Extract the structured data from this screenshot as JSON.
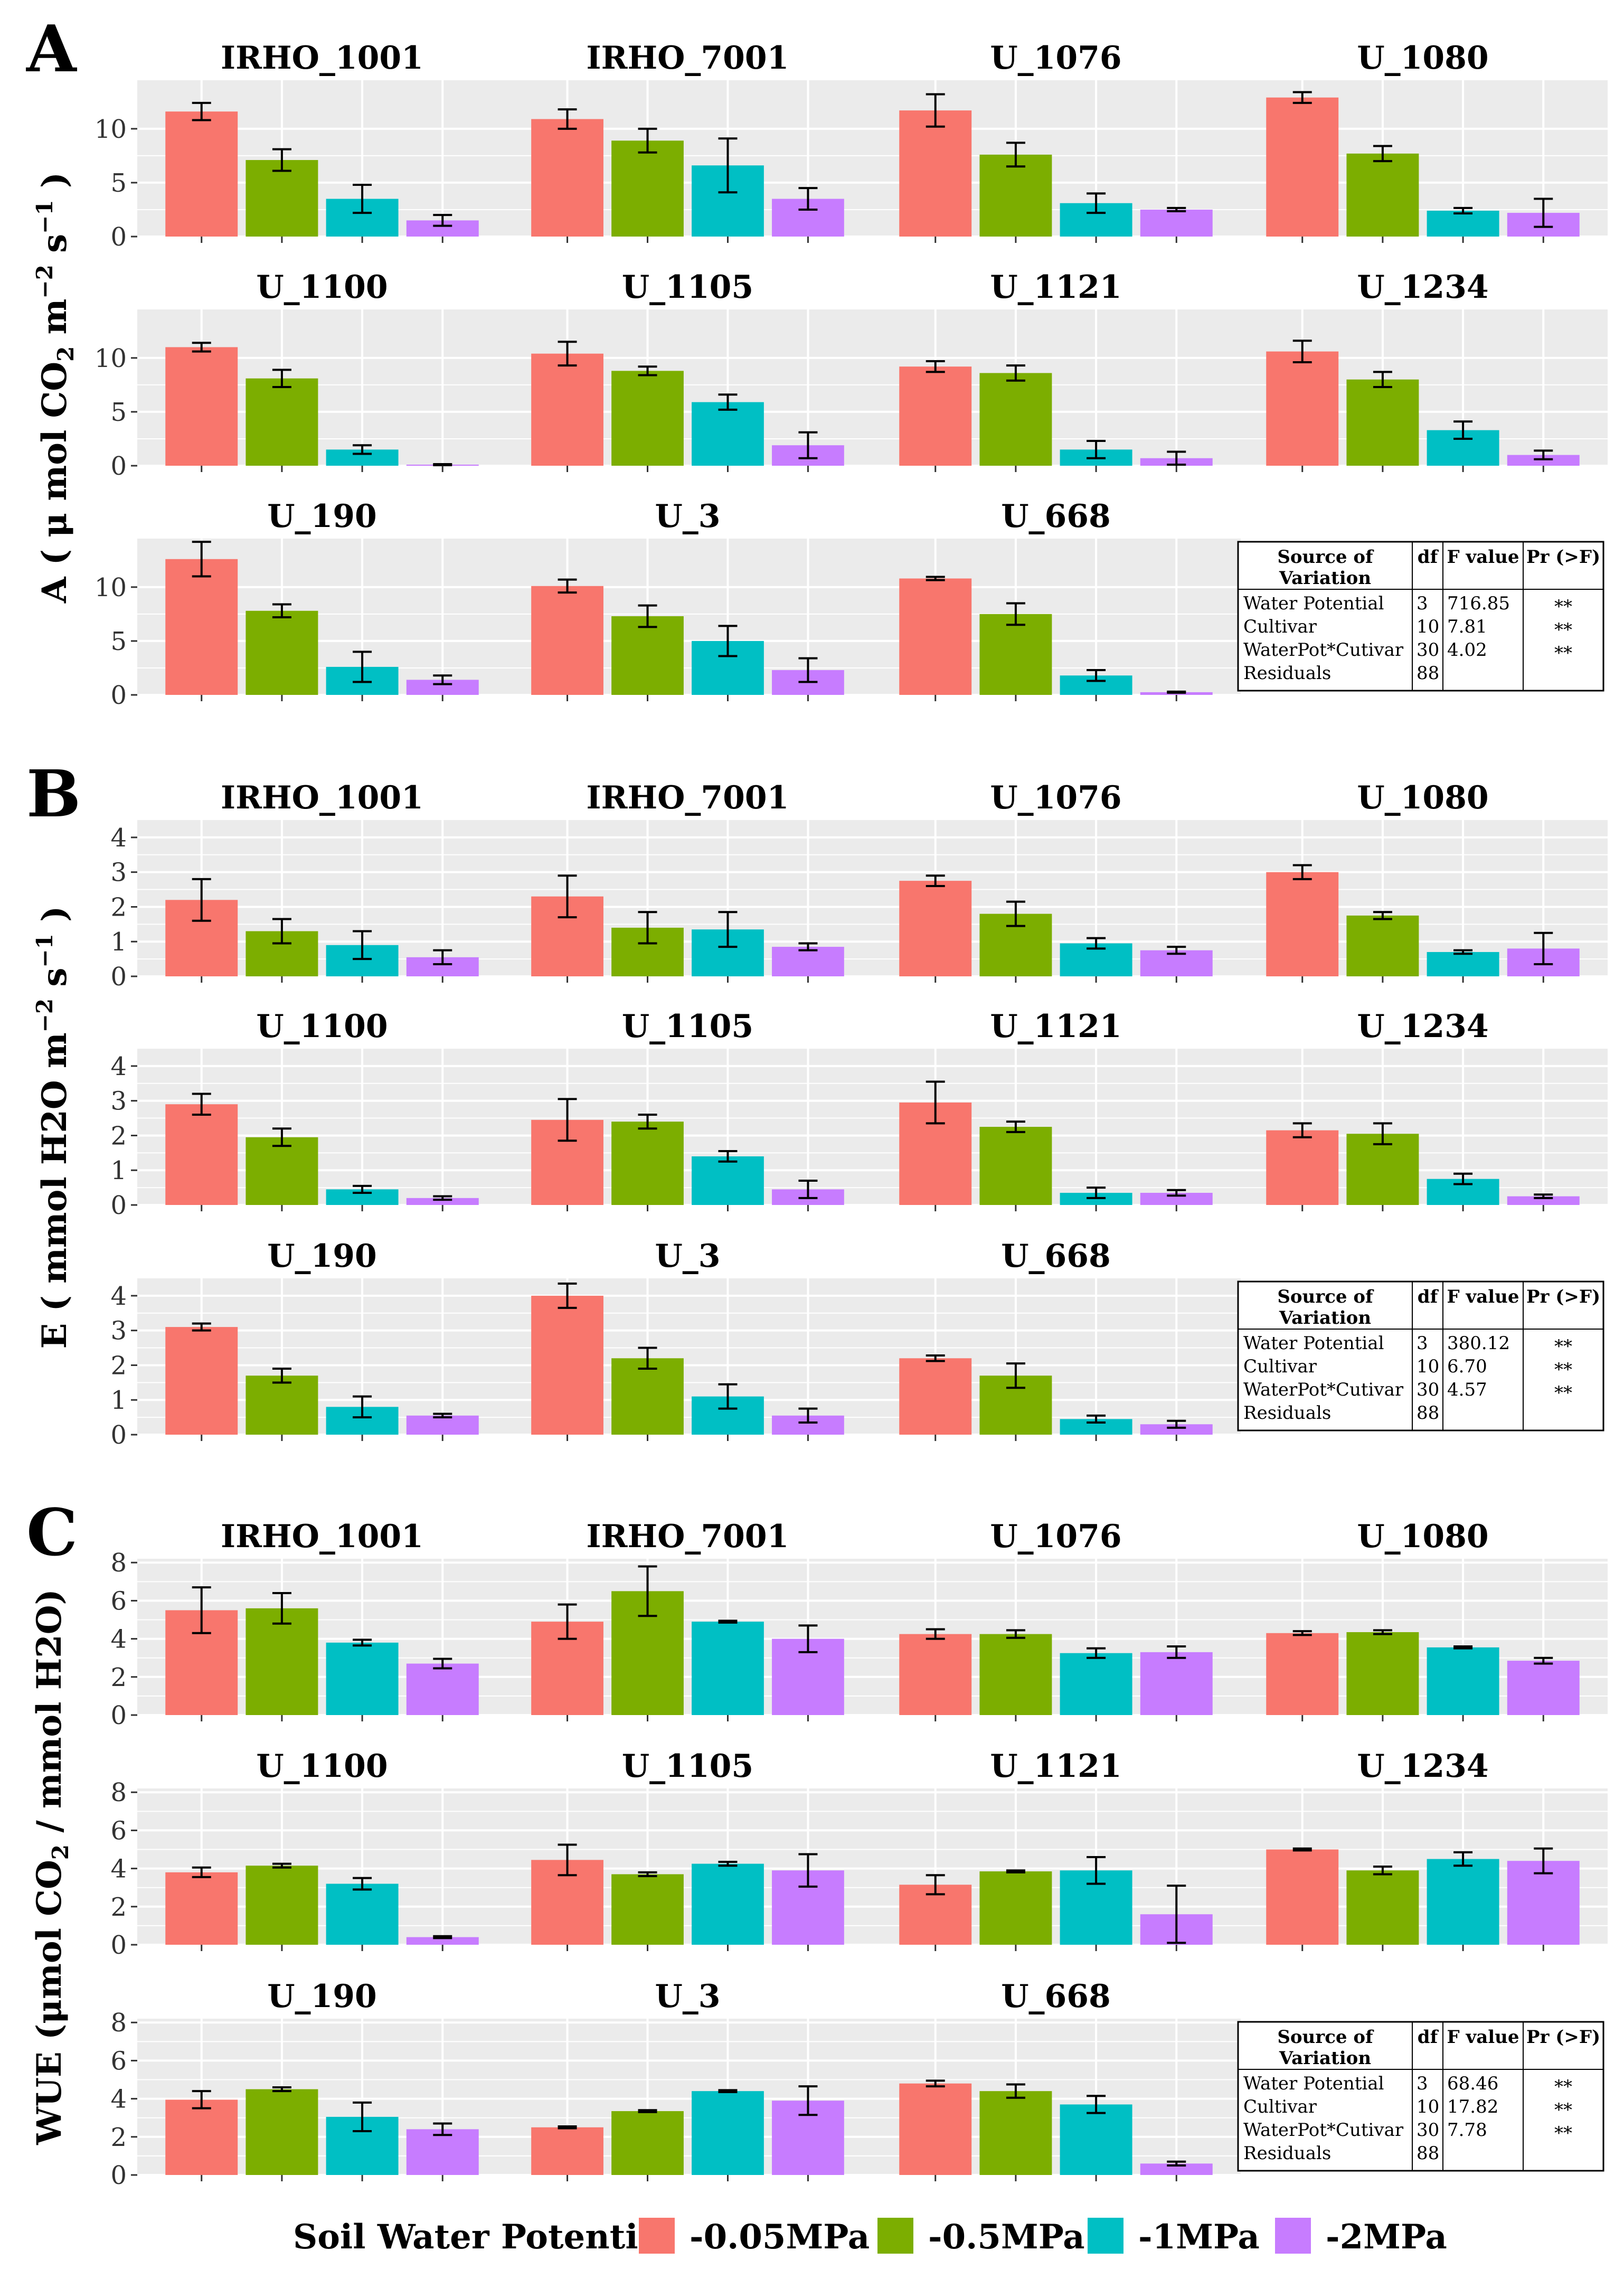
{
  "legend": {
    "title": "Soil Water Potential",
    "levels": [
      "-0.05MPa",
      "-0.5MPa",
      "-1MPa",
      "-2MPa"
    ],
    "colors": [
      "#F8766D",
      "#7CAE00",
      "#00BFC4",
      "#C77CFF"
    ]
  },
  "chart_data": [
    {
      "type": "bar",
      "panel_label": "A",
      "ylabel_parts": [
        "A ( μ mol CO",
        "2",
        " m",
        "−2",
        " s",
        "−1",
        " )"
      ],
      "ylim": [
        0,
        14.5
      ],
      "yticks": [
        "0",
        "5",
        "10"
      ],
      "ytick_values": [
        0,
        5,
        10
      ],
      "series_names": [
        "-0.05MPa",
        "-0.5MPa",
        "-1MPa",
        "-2MPa"
      ],
      "facets": [
        {
          "title": "IRHO_1001",
          "values": [
            11.6,
            7.1,
            3.5,
            1.5
          ],
          "errors": [
            0.8,
            1.0,
            1.3,
            0.5
          ]
        },
        {
          "title": "IRHO_7001",
          "values": [
            10.9,
            8.9,
            6.6,
            3.5
          ],
          "errors": [
            0.9,
            1.1,
            2.5,
            1.0
          ]
        },
        {
          "title": "U_1076",
          "values": [
            11.7,
            7.6,
            3.1,
            2.5
          ],
          "errors": [
            1.5,
            1.1,
            0.9,
            0.15
          ]
        },
        {
          "title": "U_1080",
          "values": [
            12.9,
            7.7,
            2.4,
            2.2
          ],
          "errors": [
            0.5,
            0.7,
            0.25,
            1.3
          ]
        },
        {
          "title": "U_1100",
          "values": [
            11.0,
            8.1,
            1.5,
            0.1
          ],
          "errors": [
            0.4,
            0.8,
            0.4,
            0.05
          ]
        },
        {
          "title": "U_1105",
          "values": [
            10.4,
            8.8,
            5.9,
            1.9
          ],
          "errors": [
            1.1,
            0.4,
            0.7,
            1.2
          ]
        },
        {
          "title": "U_1121",
          "values": [
            9.2,
            8.6,
            1.5,
            0.7
          ],
          "errors": [
            0.5,
            0.7,
            0.8,
            0.6
          ]
        },
        {
          "title": "U_1234",
          "values": [
            10.6,
            8.0,
            3.3,
            1.0
          ],
          "errors": [
            1.0,
            0.7,
            0.8,
            0.4
          ]
        },
        {
          "title": "U_190",
          "values": [
            12.6,
            7.8,
            2.6,
            1.4
          ],
          "errors": [
            1.6,
            0.6,
            1.4,
            0.4
          ]
        },
        {
          "title": "U_3",
          "values": [
            10.1,
            7.3,
            5.0,
            2.3
          ],
          "errors": [
            0.6,
            1.0,
            1.4,
            1.1
          ]
        },
        {
          "title": "U_668",
          "values": [
            10.8,
            7.5,
            1.8,
            0.25
          ],
          "errors": [
            0.15,
            1.0,
            0.5,
            0.05
          ]
        }
      ],
      "anova_table": {
        "headers": [
          "Source of",
          "Variation",
          "df",
          "F value",
          "Pr (>F)"
        ],
        "rows": [
          [
            "Water Potential",
            "3",
            "716.85",
            "**"
          ],
          [
            "Cultivar",
            "10",
            "7.81",
            "**"
          ],
          [
            "WaterPot*Cutivar",
            "30",
            "4.02",
            "**"
          ],
          [
            "Residuals",
            "88",
            "",
            ""
          ]
        ]
      }
    },
    {
      "type": "bar",
      "panel_label": "B",
      "ylabel_parts": [
        "E ( mmol H2O m",
        "−2",
        " s",
        "−1",
        " )"
      ],
      "ylim": [
        0,
        4.5
      ],
      "yticks": [
        "0",
        "1",
        "2",
        "3",
        "4"
      ],
      "ytick_values": [
        0,
        1,
        2,
        3,
        4
      ],
      "series_names": [
        "-0.05MPa",
        "-0.5MPa",
        "-1MPa",
        "-2MPa"
      ],
      "facets": [
        {
          "title": "IRHO_1001",
          "values": [
            2.2,
            1.3,
            0.9,
            0.55
          ],
          "errors": [
            0.6,
            0.35,
            0.4,
            0.2
          ]
        },
        {
          "title": "IRHO_7001",
          "values": [
            2.3,
            1.4,
            1.35,
            0.85
          ],
          "errors": [
            0.6,
            0.45,
            0.5,
            0.1
          ]
        },
        {
          "title": "U_1076",
          "values": [
            2.75,
            1.8,
            0.95,
            0.75
          ],
          "errors": [
            0.15,
            0.35,
            0.15,
            0.1
          ]
        },
        {
          "title": "U_1080",
          "values": [
            3.0,
            1.75,
            0.7,
            0.8
          ],
          "errors": [
            0.2,
            0.1,
            0.05,
            0.45
          ]
        },
        {
          "title": "U_1100",
          "values": [
            2.9,
            1.95,
            0.45,
            0.2
          ],
          "errors": [
            0.3,
            0.25,
            0.1,
            0.05
          ]
        },
        {
          "title": "U_1105",
          "values": [
            2.45,
            2.4,
            1.4,
            0.45
          ],
          "errors": [
            0.6,
            0.2,
            0.15,
            0.25
          ]
        },
        {
          "title": "U_1121",
          "values": [
            2.95,
            2.25,
            0.35,
            0.35
          ],
          "errors": [
            0.6,
            0.15,
            0.15,
            0.08
          ]
        },
        {
          "title": "U_1234",
          "values": [
            2.15,
            2.05,
            0.75,
            0.25
          ],
          "errors": [
            0.2,
            0.3,
            0.15,
            0.05
          ]
        },
        {
          "title": "U_190",
          "values": [
            3.1,
            1.7,
            0.8,
            0.55
          ],
          "errors": [
            0.1,
            0.2,
            0.3,
            0.05
          ]
        },
        {
          "title": "U_3",
          "values": [
            4.0,
            2.2,
            1.1,
            0.55
          ],
          "errors": [
            0.35,
            0.3,
            0.35,
            0.2
          ]
        },
        {
          "title": "U_668",
          "values": [
            2.2,
            1.7,
            0.45,
            0.3
          ],
          "errors": [
            0.08,
            0.35,
            0.1,
            0.1
          ]
        }
      ],
      "anova_table": {
        "headers": [
          "Source of",
          "Variation",
          "df",
          "F value",
          "Pr (>F)"
        ],
        "rows": [
          [
            "Water Potential",
            "3",
            "380.12",
            "**"
          ],
          [
            "Cultivar",
            "10",
            "6.70",
            "**"
          ],
          [
            "WaterPot*Cutivar",
            "30",
            "4.57",
            "**"
          ],
          [
            "Residuals",
            "88",
            "",
            ""
          ]
        ]
      }
    },
    {
      "type": "bar",
      "panel_label": "C",
      "ylabel_parts": [
        "WUE (μmol CO",
        "2",
        " / mmol H2O)"
      ],
      "ylim": [
        0,
        8.2
      ],
      "yticks": [
        "0",
        "2",
        "4",
        "6",
        "8"
      ],
      "ytick_values": [
        0,
        2,
        4,
        6,
        8
      ],
      "series_names": [
        "-0.05MPa",
        "-0.5MPa",
        "-1MPa",
        "-2MPa"
      ],
      "facets": [
        {
          "title": "IRHO_1001",
          "values": [
            5.5,
            5.6,
            3.8,
            2.7
          ],
          "errors": [
            1.2,
            0.8,
            0.15,
            0.25
          ]
        },
        {
          "title": "IRHO_7001",
          "values": [
            4.9,
            6.5,
            4.9,
            4.0
          ],
          "errors": [
            0.9,
            1.3,
            0.05,
            0.7
          ]
        },
        {
          "title": "U_1076",
          "values": [
            4.25,
            4.25,
            3.25,
            3.3
          ],
          "errors": [
            0.25,
            0.2,
            0.25,
            0.3
          ]
        },
        {
          "title": "U_1080",
          "values": [
            4.3,
            4.35,
            3.55,
            2.85
          ],
          "errors": [
            0.1,
            0.1,
            0.05,
            0.15
          ]
        },
        {
          "title": "U_1100",
          "values": [
            3.8,
            4.15,
            3.2,
            0.4
          ],
          "errors": [
            0.25,
            0.1,
            0.3,
            0.05
          ]
        },
        {
          "title": "U_1105",
          "values": [
            4.45,
            3.7,
            4.25,
            3.9
          ],
          "errors": [
            0.8,
            0.1,
            0.1,
            0.85
          ]
        },
        {
          "title": "U_1121",
          "values": [
            3.15,
            3.85,
            3.9,
            1.6
          ],
          "errors": [
            0.5,
            0.05,
            0.7,
            1.5
          ]
        },
        {
          "title": "U_1234",
          "values": [
            5.0,
            3.9,
            4.5,
            4.4
          ],
          "errors": [
            0.05,
            0.2,
            0.35,
            0.65
          ]
        },
        {
          "title": "U_190",
          "values": [
            3.95,
            4.5,
            3.05,
            2.4
          ],
          "errors": [
            0.45,
            0.1,
            0.75,
            0.3
          ]
        },
        {
          "title": "U_3",
          "values": [
            2.5,
            3.35,
            4.4,
            3.9
          ],
          "errors": [
            0.05,
            0.05,
            0.05,
            0.75
          ]
        },
        {
          "title": "U_668",
          "values": [
            4.8,
            4.4,
            3.7,
            0.6
          ],
          "errors": [
            0.15,
            0.35,
            0.45,
            0.1
          ]
        }
      ],
      "anova_table": {
        "headers": [
          "Source of",
          "Variation",
          "df",
          "F value",
          "Pr (>F)"
        ],
        "rows": [
          [
            "Water Potential",
            "3",
            "68.46",
            "**"
          ],
          [
            "Cultivar",
            "10",
            "17.82",
            "**"
          ],
          [
            "WaterPot*Cutivar",
            "30",
            "7.78",
            "**"
          ],
          [
            "Residuals",
            "88",
            "",
            ""
          ]
        ]
      }
    }
  ]
}
